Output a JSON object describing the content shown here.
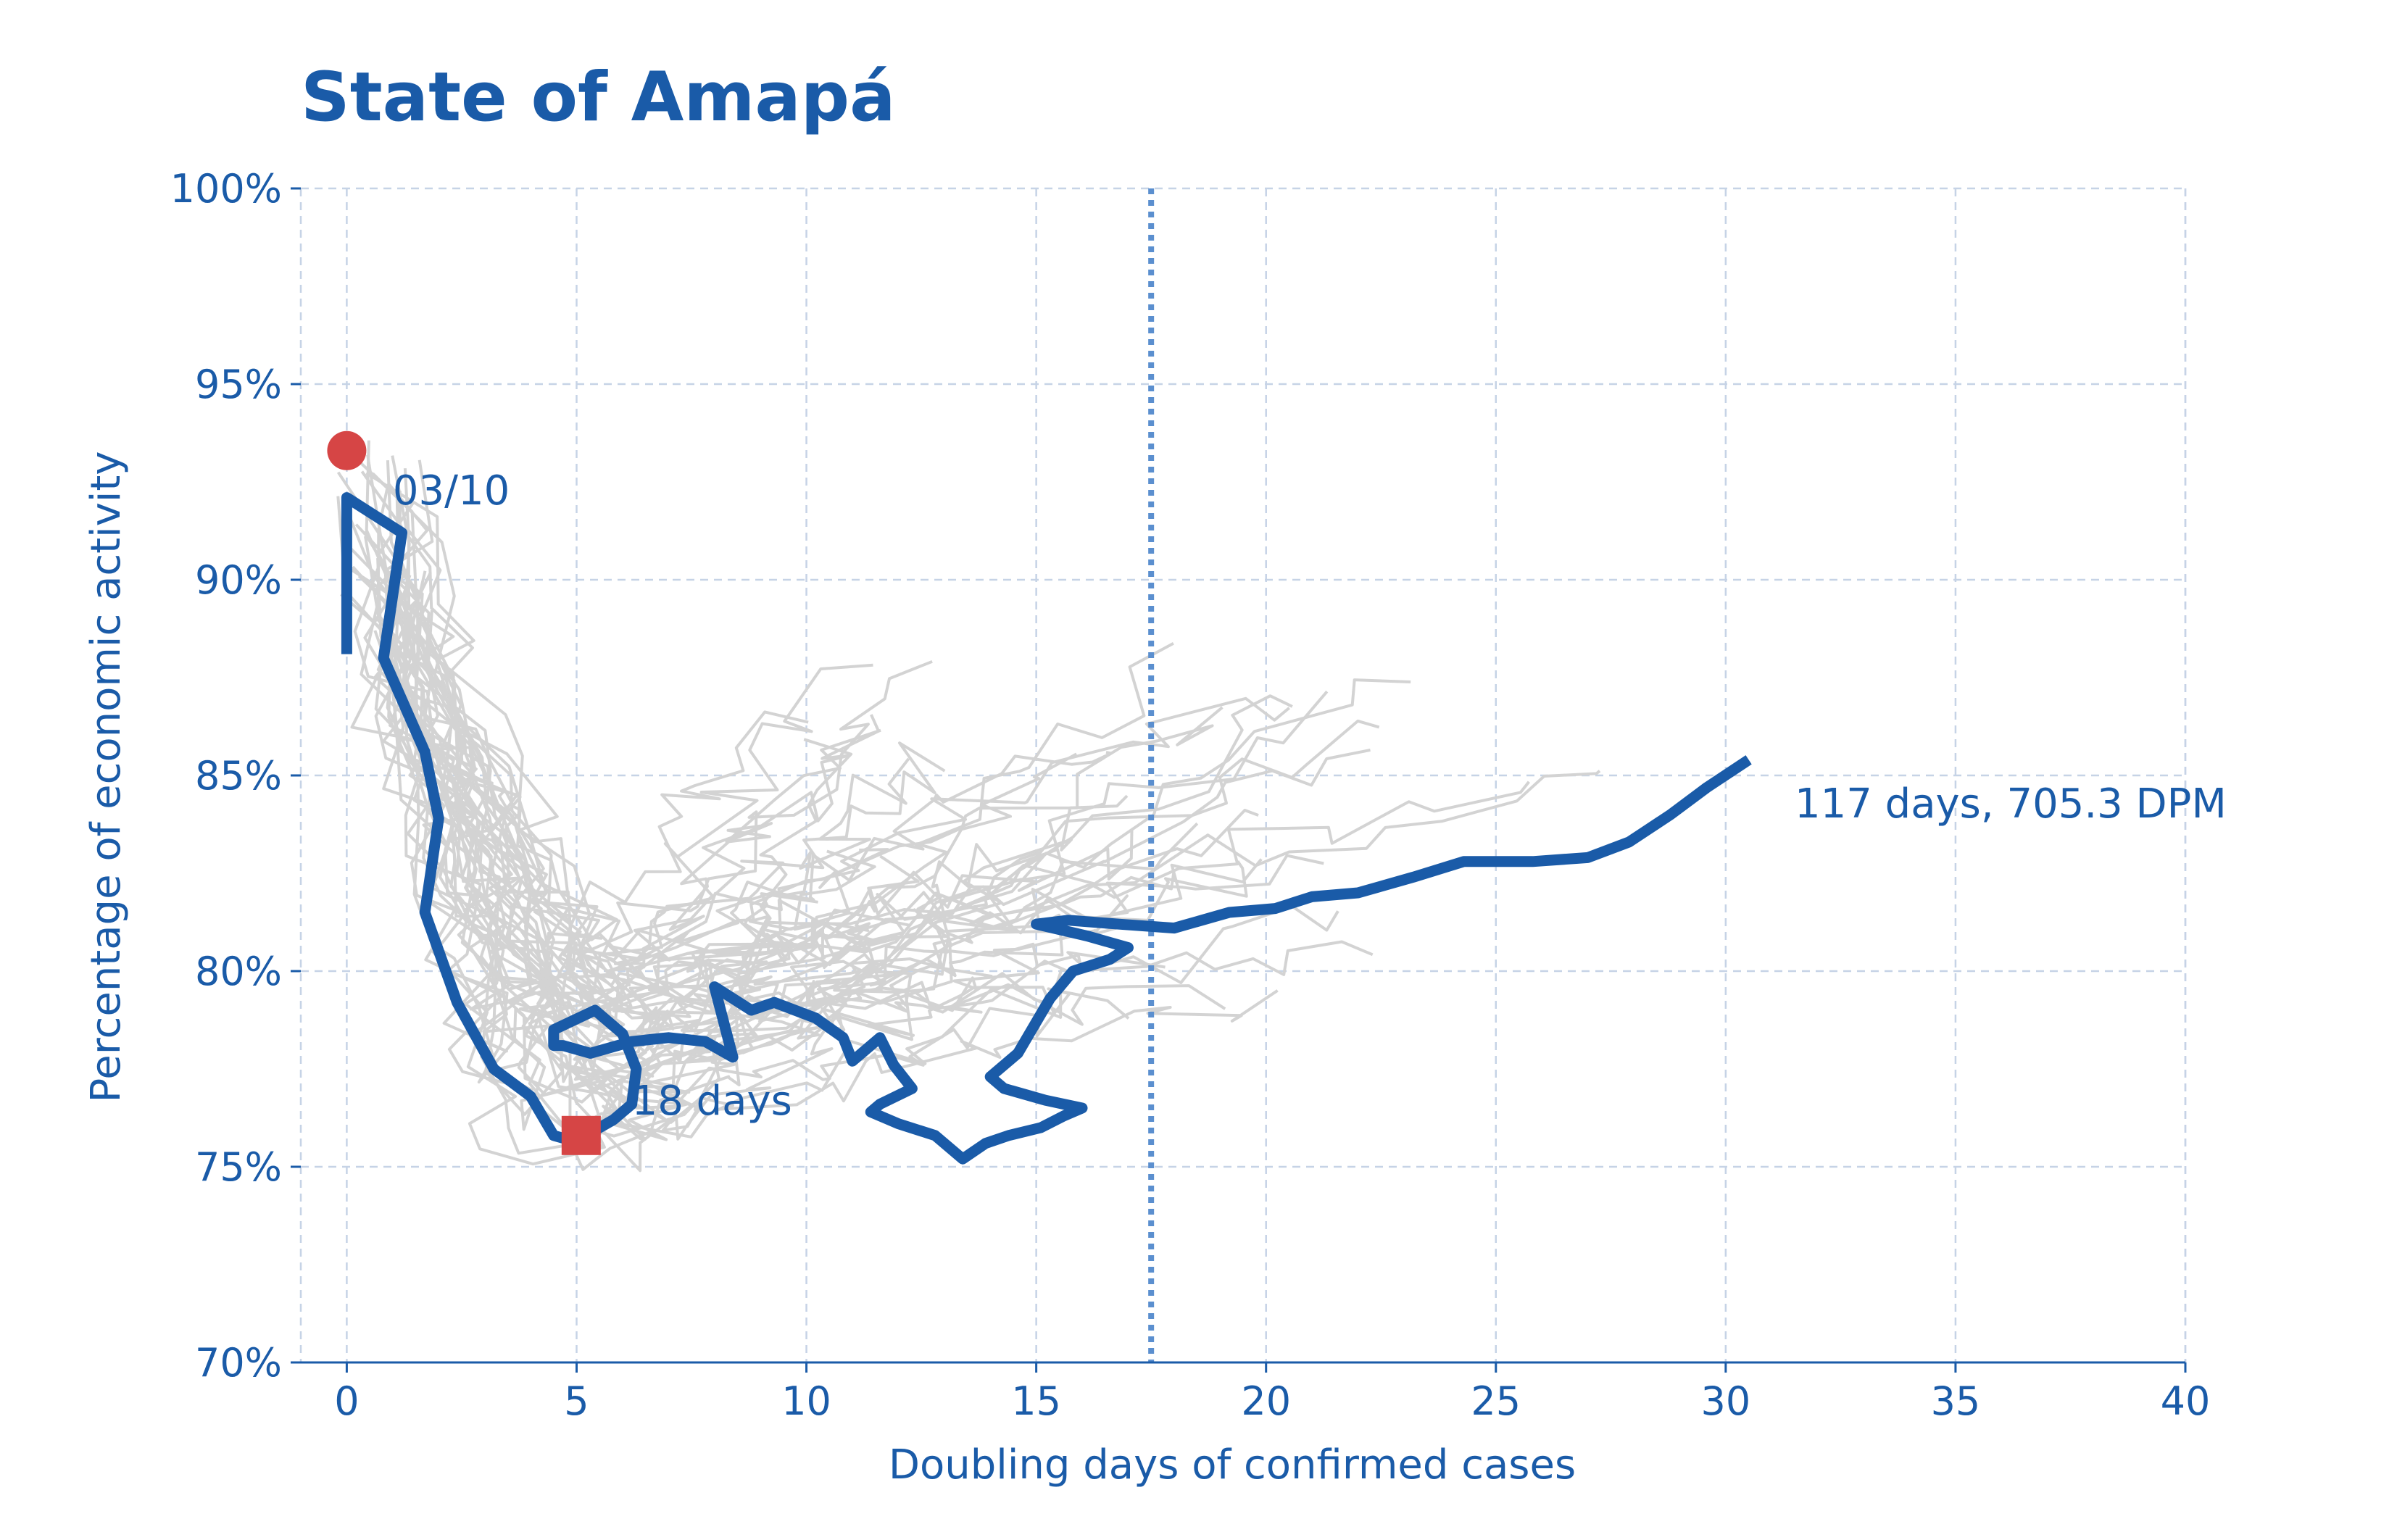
{
  "chart_data": {
    "type": "line",
    "title": "State of Amapá",
    "xlabel": "Doubling days of confirmed cases",
    "ylabel": "Percentage of economic activity",
    "xlim": [
      -1,
      40
    ],
    "ylim": [
      70,
      100
    ],
    "x_ticks": [
      0,
      5,
      10,
      15,
      20,
      25,
      30,
      35,
      40
    ],
    "x_tick_labels": [
      "0",
      "5",
      "10",
      "15",
      "20",
      "25",
      "30",
      "35",
      "40"
    ],
    "y_ticks": [
      70,
      75,
      80,
      85,
      90,
      95,
      100
    ],
    "y_tick_labels": [
      "70%",
      "75%",
      "80%",
      "85%",
      "90%",
      "95%",
      "100%"
    ],
    "grid": true,
    "reference_line": {
      "x": 17.5,
      "style": "dotted"
    },
    "colors": {
      "highlight": "#1a5ba8",
      "background_series": "#d3d3d3",
      "marker": "#d64545",
      "reference": "#5b8fcf",
      "grid": "#c6d3e6"
    },
    "highlight_series": {
      "x": [
        0,
        0,
        0,
        1.2,
        0.8,
        1.7,
        2.0,
        1.7,
        2.4,
        3.2,
        4.0,
        4.5,
        4.8,
        5.2,
        5.8,
        6.2,
        6.3,
        6.0,
        5.4,
        4.5,
        4.5,
        4.7,
        5.3,
        6.2,
        7.0,
        7.8,
        8.4,
        8.0,
        8.8,
        9.3,
        10.2,
        10.8,
        11.0,
        11.6,
        11.9,
        12.3,
        11.6,
        11.4,
        12.0,
        12.8,
        13.4,
        13.9,
        14.4,
        15.1,
        15.6,
        16.0,
        15.2,
        14.3,
        14.0,
        14.6,
        14.9,
        15.3,
        15.8,
        16.6,
        17.0,
        16.1,
        15.0,
        15.7,
        16.8,
        18.0,
        19.2,
        20.2,
        21.0,
        22.0,
        23.2,
        24.3,
        25.8,
        27.0,
        27.9,
        28.8,
        29.6,
        30.5
      ],
      "y": [
        88.1,
        90.2,
        92.1,
        91.2,
        88.0,
        85.6,
        83.9,
        81.5,
        79.2,
        77.5,
        76.8,
        75.8,
        75.7,
        75.8,
        76.2,
        76.6,
        77.5,
        78.4,
        79.0,
        78.5,
        78.1,
        78.1,
        77.9,
        78.2,
        78.3,
        78.2,
        77.8,
        79.6,
        79.0,
        79.2,
        78.8,
        78.3,
        77.7,
        78.3,
        77.6,
        77.0,
        76.6,
        76.4,
        76.1,
        75.8,
        75.2,
        75.6,
        75.8,
        76.0,
        76.3,
        76.5,
        76.7,
        77.0,
        77.3,
        77.9,
        78.5,
        79.3,
        80.0,
        80.3,
        80.6,
        80.9,
        81.2,
        81.3,
        81.2,
        81.1,
        81.5,
        81.6,
        81.9,
        82.0,
        82.4,
        82.8,
        82.8,
        82.9,
        83.3,
        84.0,
        84.7,
        85.4
      ]
    },
    "start_marker": {
      "x": 0,
      "y": 93.3,
      "shape": "circle"
    },
    "min_marker": {
      "x": 5.1,
      "y": 75.8,
      "shape": "square"
    },
    "annotations": [
      {
        "text": "03/10",
        "x": 1.0,
        "y": 92.3
      },
      {
        "text": "18 days",
        "x": 6.2,
        "y": 76.7
      },
      {
        "text": "117 days, 705.3 DPM",
        "x": 31.5,
        "y": 84.3
      }
    ]
  }
}
